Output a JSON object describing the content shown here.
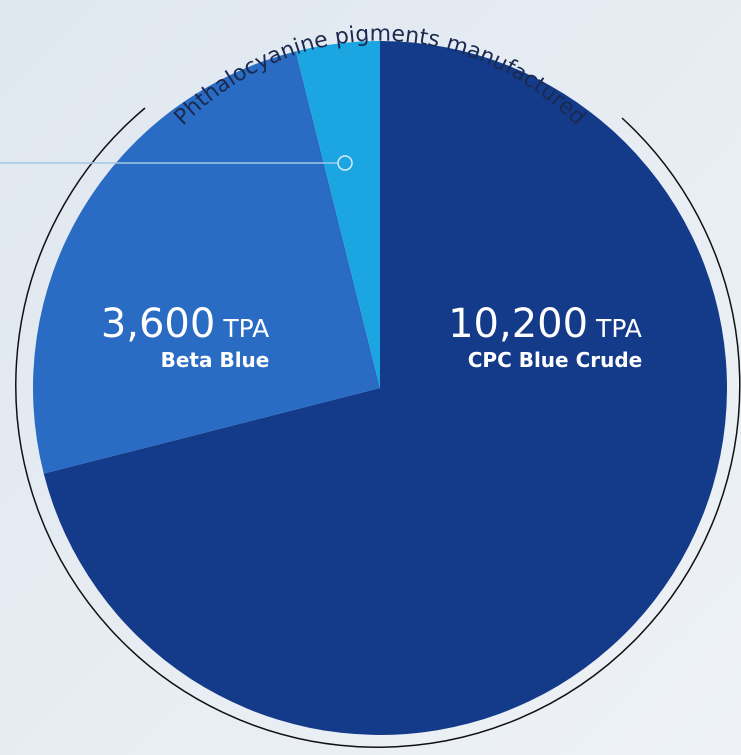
{
  "chart_data": {
    "type": "pie",
    "title": "Phthalocyanine pigments manufactured",
    "unit": "TPA",
    "categories": [
      "CPC Blue Crude",
      "Beta Blue",
      null
    ],
    "values": [
      10200,
      3600,
      560
    ],
    "value_labels": [
      "10,200",
      "3,600",
      null
    ],
    "colors": [
      "#143a8a",
      "#2a6cc4",
      "#1ba6e2"
    ]
  }
}
